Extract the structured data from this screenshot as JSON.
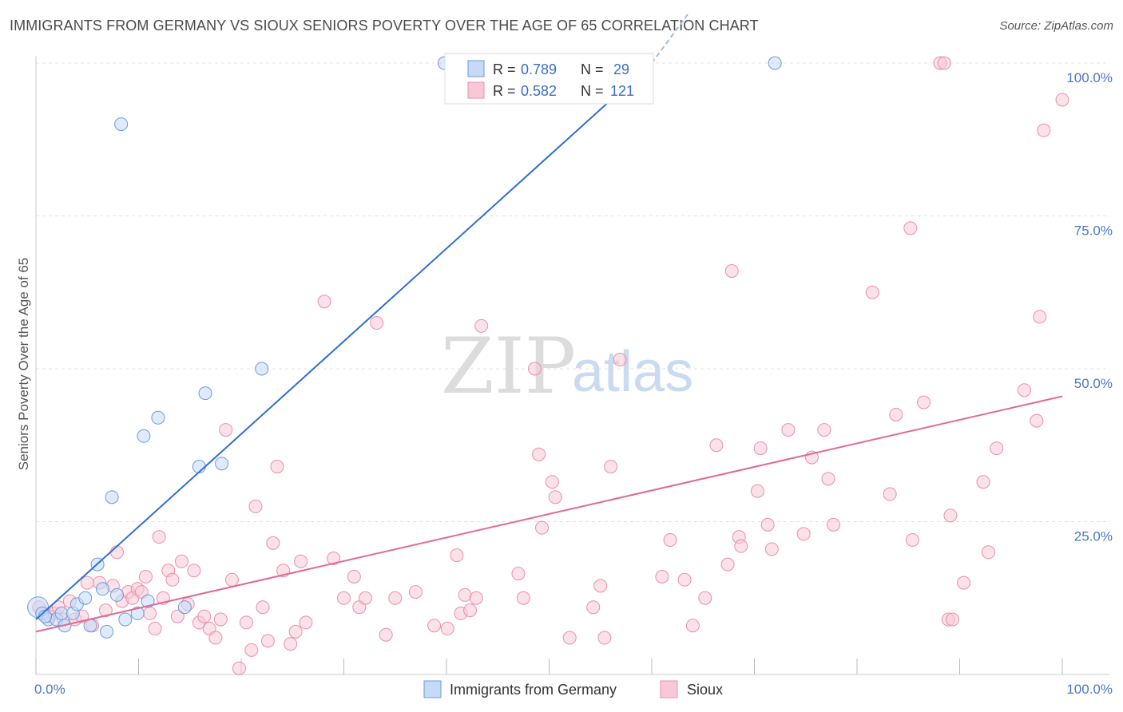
{
  "title": "IMMIGRANTS FROM GERMANY VS SIOUX SENIORS POVERTY OVER THE AGE OF 65 CORRELATION CHART",
  "source": "Source: ZipAtlas.com",
  "watermark": {
    "zip": "ZIP",
    "atlas": "atlas"
  },
  "chart_data": {
    "type": "scatter",
    "ylabel": "Seniors Poverty Over the Age of 65",
    "xlim": [
      0,
      100
    ],
    "ylim": [
      0,
      104
    ],
    "x_tick_labels": [
      {
        "value": 0,
        "label": "0.0%"
      },
      {
        "value": 100,
        "label": "100.0%"
      }
    ],
    "y_tick_labels": [
      {
        "value": 25,
        "label": "25.0%"
      },
      {
        "value": 50,
        "label": "50.0%"
      },
      {
        "value": 75,
        "label": "75.0%"
      },
      {
        "value": 100,
        "label": "100.0%"
      }
    ],
    "grid": true,
    "legend_position": "top-center",
    "series": [
      {
        "name": "Immigrants from Germany",
        "color": "#6b9be0",
        "fill": "#c5daf5",
        "line_color": "#2f6fd0",
        "r_label": "R = ",
        "r_value": "0.789",
        "n_label": "N = ",
        "n_value": "29",
        "trend": [
          [
            0,
            9
          ],
          [
            60,
            100
          ]
        ],
        "points": [
          [
            0.2,
            11
          ],
          [
            0.6,
            10
          ],
          [
            1.2,
            9
          ],
          [
            2.0,
            9
          ],
          [
            2.5,
            10
          ],
          [
            2.8,
            8
          ],
          [
            3.6,
            10
          ],
          [
            4.0,
            11.5
          ],
          [
            4.8,
            12.5
          ],
          [
            5.3,
            8
          ],
          [
            6.0,
            18
          ],
          [
            6.5,
            14
          ],
          [
            6.9,
            7
          ],
          [
            7.4,
            29
          ],
          [
            7.9,
            13
          ],
          [
            8.3,
            90
          ],
          [
            8.7,
            9
          ],
          [
            9.9,
            10
          ],
          [
            10.5,
            39
          ],
          [
            10.9,
            12
          ],
          [
            11.9,
            42
          ],
          [
            14.5,
            11
          ],
          [
            15.9,
            34
          ],
          [
            16.5,
            46
          ],
          [
            18.1,
            34.5
          ],
          [
            22.0,
            50
          ],
          [
            39.8,
            100
          ],
          [
            72.0,
            100
          ],
          [
            0.9,
            9.5
          ]
        ]
      },
      {
        "name": "Sioux",
        "color": "#ec8eab",
        "fill": "#f8c8d6",
        "line_color": "#e06a92",
        "r_label": "R = ",
        "r_value": "0.582",
        "n_label": "N = ",
        "n_value": "121",
        "trend": [
          [
            0,
            7
          ],
          [
            100,
            45.5
          ]
        ],
        "points": [
          [
            0.3,
            11
          ],
          [
            0.8,
            10
          ],
          [
            1.3,
            9.5
          ],
          [
            1.8,
            10
          ],
          [
            2.2,
            11
          ],
          [
            2.7,
            9
          ],
          [
            3.3,
            12
          ],
          [
            3.8,
            9
          ],
          [
            4.5,
            9.5
          ],
          [
            5.0,
            15
          ],
          [
            5.5,
            8
          ],
          [
            6.2,
            15
          ],
          [
            6.8,
            10.5
          ],
          [
            7.5,
            14.5
          ],
          [
            7.9,
            20
          ],
          [
            8.4,
            12
          ],
          [
            9.0,
            13.5
          ],
          [
            9.4,
            12.5
          ],
          [
            9.9,
            14
          ],
          [
            10.3,
            13.5
          ],
          [
            10.7,
            16
          ],
          [
            11.1,
            10
          ],
          [
            11.6,
            7.5
          ],
          [
            12.0,
            22.5
          ],
          [
            12.4,
            12.5
          ],
          [
            12.9,
            17
          ],
          [
            13.3,
            15.5
          ],
          [
            13.8,
            9.5
          ],
          [
            14.2,
            18.5
          ],
          [
            14.8,
            11.5
          ],
          [
            15.4,
            17
          ],
          [
            15.9,
            8.5
          ],
          [
            16.4,
            9.5
          ],
          [
            16.9,
            7.5
          ],
          [
            17.5,
            6
          ],
          [
            18.0,
            9
          ],
          [
            18.5,
            40
          ],
          [
            19.1,
            15.5
          ],
          [
            19.8,
            1
          ],
          [
            20.5,
            8.5
          ],
          [
            21.0,
            4
          ],
          [
            21.4,
            27.5
          ],
          [
            22.1,
            11
          ],
          [
            22.6,
            5.5
          ],
          [
            23.1,
            21.5
          ],
          [
            23.5,
            34
          ],
          [
            24.1,
            17
          ],
          [
            24.8,
            5
          ],
          [
            25.3,
            7
          ],
          [
            25.8,
            18.5
          ],
          [
            26.3,
            8.5
          ],
          [
            29.0,
            19
          ],
          [
            28.1,
            61
          ],
          [
            30.0,
            12.5
          ],
          [
            31.0,
            16
          ],
          [
            31.5,
            11
          ],
          [
            32.1,
            12.5
          ],
          [
            33.2,
            57.5
          ],
          [
            34.1,
            6.5
          ],
          [
            35.0,
            12.5
          ],
          [
            37.0,
            13.5
          ],
          [
            38.8,
            8
          ],
          [
            40.1,
            7.5
          ],
          [
            41.0,
            19.5
          ],
          [
            41.4,
            10
          ],
          [
            41.8,
            13
          ],
          [
            42.3,
            10.5
          ],
          [
            42.9,
            12.5
          ],
          [
            43.4,
            57
          ],
          [
            47.0,
            16.5
          ],
          [
            47.5,
            12.5
          ],
          [
            48.6,
            50
          ],
          [
            49.0,
            36
          ],
          [
            49.3,
            24
          ],
          [
            50.3,
            31.5
          ],
          [
            50.6,
            29
          ],
          [
            52.0,
            6
          ],
          [
            54.3,
            11
          ],
          [
            55.0,
            14.5
          ],
          [
            55.4,
            6
          ],
          [
            56.0,
            34
          ],
          [
            56.9,
            51.5
          ],
          [
            61.0,
            16
          ],
          [
            61.8,
            22
          ],
          [
            63.2,
            15.5
          ],
          [
            64.0,
            8
          ],
          [
            65.2,
            12.5
          ],
          [
            66.3,
            37.5
          ],
          [
            67.4,
            18
          ],
          [
            67.8,
            66
          ],
          [
            68.5,
            22.5
          ],
          [
            68.7,
            21
          ],
          [
            70.3,
            30
          ],
          [
            70.6,
            37
          ],
          [
            71.3,
            24.5
          ],
          [
            71.7,
            20.5
          ],
          [
            73.3,
            40
          ],
          [
            74.8,
            23
          ],
          [
            75.6,
            35.5
          ],
          [
            76.8,
            40
          ],
          [
            77.2,
            32
          ],
          [
            77.7,
            24.5
          ],
          [
            81.5,
            62.5
          ],
          [
            83.2,
            29.5
          ],
          [
            83.8,
            42.5
          ],
          [
            85.2,
            73
          ],
          [
            85.4,
            22
          ],
          [
            86.5,
            44.5
          ],
          [
            88.1,
            100
          ],
          [
            88.5,
            100
          ],
          [
            88.9,
            9
          ],
          [
            89.1,
            26
          ],
          [
            89.3,
            9
          ],
          [
            90.4,
            15
          ],
          [
            92.3,
            31.5
          ],
          [
            92.8,
            20
          ],
          [
            93.6,
            37
          ],
          [
            96.3,
            46.5
          ],
          [
            97.5,
            41.5
          ],
          [
            97.8,
            58.5
          ],
          [
            98.2,
            89
          ],
          [
            100.0,
            94
          ]
        ]
      }
    ]
  }
}
